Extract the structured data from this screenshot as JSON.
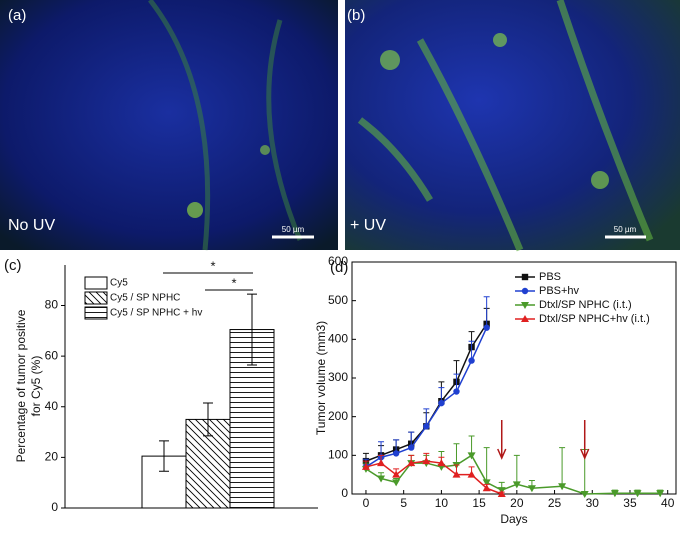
{
  "panels": {
    "a": {
      "label": "(a)",
      "caption": "No UV",
      "scale_bar": "50 µm"
    },
    "b": {
      "label": "(b)",
      "caption": "+ UV",
      "scale_bar": "50 µm"
    },
    "c": {
      "label": "(c)"
    },
    "d": {
      "label": "(d)"
    }
  },
  "chart_data": [
    {
      "type": "bar",
      "ylabel": [
        "Percentage of tumor positive",
        "for Cy5 (%)"
      ],
      "ylim": [
        0,
        96
      ],
      "yticks": [
        0,
        20,
        40,
        60,
        80
      ],
      "legend": "top-left",
      "significance": [
        "*",
        "*"
      ],
      "series": [
        {
          "name": "Cy5",
          "color": "#000000",
          "pattern": "none",
          "values": [
            20.5
          ],
          "errors": [
            6
          ]
        },
        {
          "name": "Cy5 / SP NPHC",
          "color": "#000000",
          "pattern": "diagonal",
          "values": [
            35
          ],
          "errors": [
            6.5
          ]
        },
        {
          "name": "Cy5 / SP NPHC + hv",
          "color": "#000000",
          "pattern": "horizontal",
          "values": [
            70.5
          ],
          "errors": [
            14
          ]
        }
      ]
    },
    {
      "type": "line",
      "xlabel": "Days",
      "ylabel": "Tumor volume (mm3)",
      "xlim": [
        -1.85,
        41.1
      ],
      "ylim": [
        0,
        600
      ],
      "xticks": [
        0,
        5,
        10,
        15,
        20,
        25,
        30,
        35,
        40
      ],
      "yticks": [
        0,
        100,
        200,
        300,
        400,
        500,
        600
      ],
      "legend": "top-right",
      "arrows": [
        18,
        29
      ],
      "arrow_color": "#b01818",
      "series": [
        {
          "name": "PBS",
          "color": "#111111",
          "marker": "square",
          "x": [
            0,
            2,
            4,
            6,
            8,
            10,
            12,
            14,
            16
          ],
          "values": [
            85,
            100,
            115,
            130,
            175,
            240,
            290,
            380,
            440
          ],
          "errors": [
            20,
            25,
            25,
            30,
            35,
            50,
            55,
            40,
            40
          ]
        },
        {
          "name": "PBS+hv",
          "color": "#2040d0",
          "marker": "circle",
          "x": [
            0,
            2,
            4,
            6,
            8,
            10,
            12,
            14,
            16
          ],
          "values": [
            70,
            95,
            105,
            120,
            175,
            235,
            265,
            345,
            430
          ],
          "errors": [
            20,
            40,
            35,
            40,
            45,
            40,
            45,
            50,
            80
          ]
        },
        {
          "name": "Dtxl/SP NPHC (i.t.)",
          "color": "#4a9a2a",
          "marker": "triangle-down",
          "x": [
            0,
            2,
            4,
            6,
            8,
            10,
            12,
            14,
            16,
            18,
            20,
            22,
            26,
            29,
            33,
            36,
            39
          ],
          "values": [
            65,
            40,
            30,
            80,
            80,
            70,
            75,
            100,
            30,
            10,
            25,
            15,
            20,
            0,
            2,
            2,
            2
          ],
          "errors": [
            15,
            15,
            10,
            20,
            20,
            40,
            55,
            50,
            90,
            20,
            75,
            20,
            100,
            115,
            8,
            8,
            8
          ]
        },
        {
          "name": "Dtxl/SP NPHC+hv (i.t.)",
          "color": "#e02020",
          "marker": "triangle-up",
          "x": [
            0,
            2,
            4,
            6,
            8,
            10,
            12,
            14,
            16,
            18
          ],
          "values": [
            70,
            80,
            50,
            80,
            85,
            80,
            50,
            50,
            15,
            0
          ],
          "errors": [
            15,
            20,
            15,
            20,
            20,
            15,
            25,
            20,
            10,
            5
          ]
        }
      ]
    }
  ]
}
